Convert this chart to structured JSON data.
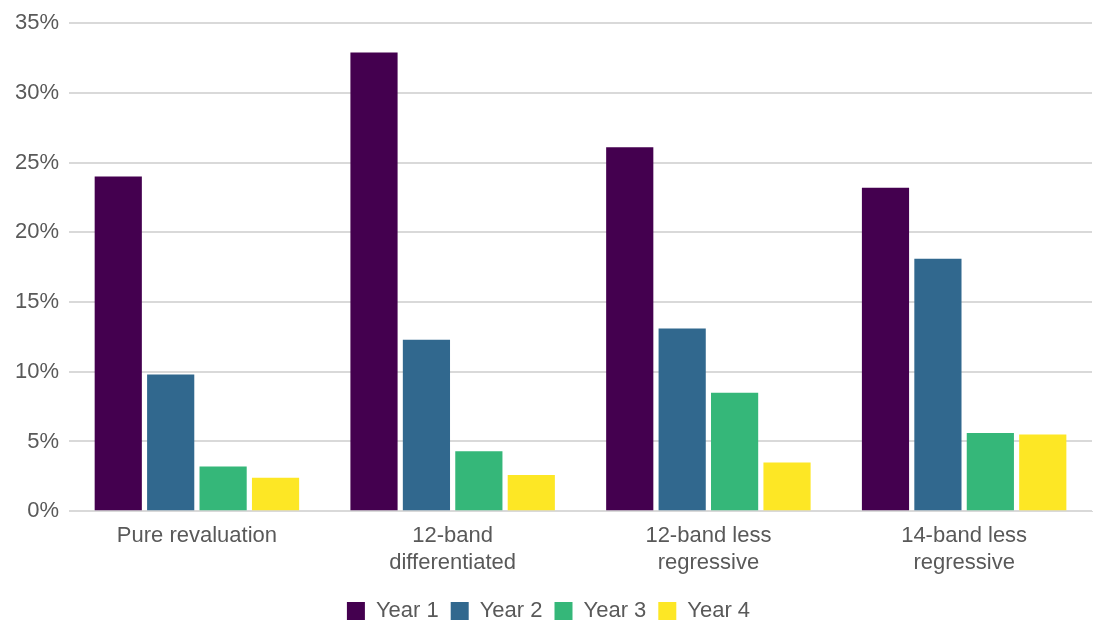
{
  "chart_data": {
    "type": "bar",
    "categories": [
      "Pure revaluation",
      "12-band differentiated",
      "12-band less regressive",
      "14-band less regressive"
    ],
    "series": [
      {
        "name": "Year 1",
        "color": "#44004f",
        "values": [
          24.0,
          32.9,
          26.1,
          23.2
        ]
      },
      {
        "name": "Year 2",
        "color": "#31688e",
        "values": [
          9.8,
          12.3,
          13.1,
          18.1
        ]
      },
      {
        "name": "Year 3",
        "color": "#35b779",
        "values": [
          3.2,
          4.3,
          8.5,
          5.6
        ]
      },
      {
        "name": "Year 4",
        "color": "#fde725",
        "values": [
          2.4,
          2.6,
          3.5,
          5.5
        ]
      }
    ],
    "ylim": [
      0,
      35
    ],
    "yticks": [
      {
        "value": 0,
        "label": "0%"
      },
      {
        "value": 5,
        "label": "5%"
      },
      {
        "value": 10,
        "label": "10%"
      },
      {
        "value": 15,
        "label": "15%"
      },
      {
        "value": 20,
        "label": "20%"
      },
      {
        "value": 25,
        "label": "25%"
      },
      {
        "value": 30,
        "label": "30%"
      },
      {
        "value": 35,
        "label": "35%"
      }
    ],
    "grid": "y",
    "legend": "bottom"
  }
}
